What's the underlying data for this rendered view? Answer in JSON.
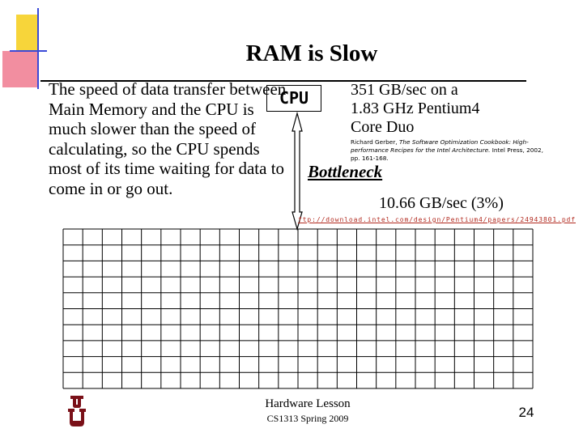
{
  "slide": {
    "title": "RAM is Slow",
    "body_text": "The speed of data transfer between Main Memory and the CPU is much slower than the speed of calculating, so the CPU spends most of its time waiting for data to come in or go out.",
    "cpu_label": "CPU",
    "stat_lines": [
      "351 GB/sec on a",
      "1.83 GHz Pentium4",
      "Core Duo"
    ],
    "citation_prefix": "Richard Gerber, ",
    "citation_title": "The Software Optimization Cookbook: High-performance Recipes for the Intel Architecture.",
    "citation_suffix": " Intel Press, 2002, pp. 161-168.",
    "bottleneck_label": "Bottleneck",
    "bus_speed": "10.66 GB/sec (3%)",
    "source_url": "ftp://download.intel.com/design/Pentium4/papers/24943801.pdf",
    "footer_title": "Hardware Lesson",
    "footer_subtitle": "CS1313 Spring 2009",
    "page_number": "24"
  },
  "colors": {
    "corner_yellow": "#f7d53a",
    "corner_pink": "#f28ea0",
    "corner_blue": "#3a4ad8",
    "url_red": "#b22a1f",
    "logo_red": "#7a1018"
  },
  "icons": {
    "corner_decoration": "corner-squares-icon",
    "memory_grid": "memory-grid-icon",
    "logo": "ou-logo-icon"
  }
}
